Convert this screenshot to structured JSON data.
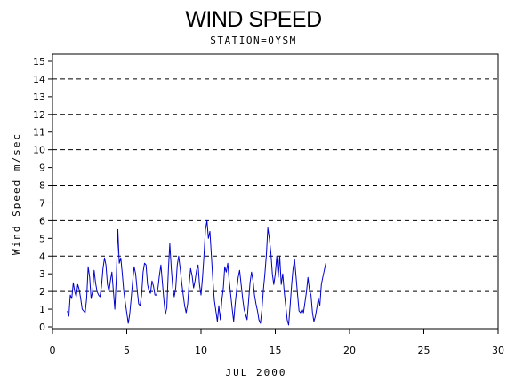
{
  "chart_data": {
    "type": "line",
    "title": "WIND SPEED",
    "subtitle": "STATION=OYSM",
    "xlabel": "JUL 2000",
    "ylabel": "Wind Speed m/sec",
    "xlim": [
      0,
      30
    ],
    "ylim": [
      0,
      15
    ],
    "x_ticks": [
      "0",
      "5",
      "10",
      "15",
      "20",
      "25",
      "30"
    ],
    "y_ticks": [
      "0",
      "1",
      "2",
      "3",
      "4",
      "5",
      "6",
      "7",
      "8",
      "9",
      "10",
      "11",
      "12",
      "13",
      "14",
      "15"
    ],
    "gridlines_y": [
      2,
      4,
      6,
      8,
      10,
      12,
      14
    ],
    "grid": "dashed horizontal",
    "line_color": "#0000cc",
    "series": [
      {
        "values": [
          [
            1.0,
            0.9
          ],
          [
            1.1,
            0.6
          ],
          [
            1.2,
            1.8
          ],
          [
            1.3,
            1.6
          ],
          [
            1.4,
            2.5
          ],
          [
            1.5,
            2.0
          ],
          [
            1.6,
            1.7
          ],
          [
            1.7,
            2.4
          ],
          [
            1.8,
            2.1
          ],
          [
            1.9,
            1.6
          ],
          [
            2.0,
            1.0
          ],
          [
            2.1,
            0.9
          ],
          [
            2.2,
            0.8
          ],
          [
            2.3,
            1.6
          ],
          [
            2.4,
            3.4
          ],
          [
            2.5,
            2.8
          ],
          [
            2.6,
            1.6
          ],
          [
            2.7,
            2.0
          ],
          [
            2.8,
            3.2
          ],
          [
            2.9,
            2.5
          ],
          [
            3.0,
            2.0
          ],
          [
            3.1,
            1.8
          ],
          [
            3.2,
            1.7
          ],
          [
            3.3,
            2.3
          ],
          [
            3.4,
            3.3
          ],
          [
            3.5,
            3.9
          ],
          [
            3.6,
            3.5
          ],
          [
            3.7,
            2.4
          ],
          [
            3.8,
            2.0
          ],
          [
            3.9,
            2.6
          ],
          [
            4.0,
            3.1
          ],
          [
            4.1,
            2.0
          ],
          [
            4.2,
            1.0
          ],
          [
            4.3,
            2.8
          ],
          [
            4.4,
            5.5
          ],
          [
            4.5,
            3.6
          ],
          [
            4.6,
            3.9
          ],
          [
            4.7,
            3.0
          ],
          [
            4.8,
            2.0
          ],
          [
            4.9,
            1.4
          ],
          [
            5.0,
            0.8
          ],
          [
            5.1,
            0.2
          ],
          [
            5.2,
            0.7
          ],
          [
            5.3,
            1.6
          ],
          [
            5.4,
            2.6
          ],
          [
            5.5,
            3.4
          ],
          [
            5.6,
            3.0
          ],
          [
            5.7,
            2.1
          ],
          [
            5.8,
            1.3
          ],
          [
            5.9,
            1.2
          ],
          [
            6.0,
            1.8
          ],
          [
            6.1,
            3.1
          ],
          [
            6.2,
            3.6
          ],
          [
            6.3,
            3.5
          ],
          [
            6.4,
            2.4
          ],
          [
            6.5,
            2.0
          ],
          [
            6.6,
            1.9
          ],
          [
            6.7,
            2.6
          ],
          [
            6.8,
            2.3
          ],
          [
            6.9,
            1.8
          ],
          [
            7.0,
            1.8
          ],
          [
            7.1,
            2.2
          ],
          [
            7.2,
            2.9
          ],
          [
            7.3,
            3.5
          ],
          [
            7.4,
            2.5
          ],
          [
            7.5,
            1.5
          ],
          [
            7.6,
            0.7
          ],
          [
            7.7,
            1.1
          ],
          [
            7.8,
            3.2
          ],
          [
            7.9,
            4.7
          ],
          [
            8.0,
            3.3
          ],
          [
            8.1,
            2.2
          ],
          [
            8.2,
            1.7
          ],
          [
            8.3,
            2.2
          ],
          [
            8.4,
            3.5
          ],
          [
            8.5,
            4.0
          ],
          [
            8.6,
            3.3
          ],
          [
            8.7,
            2.5
          ],
          [
            8.8,
            1.8
          ],
          [
            8.9,
            1.2
          ],
          [
            9.0,
            0.8
          ],
          [
            9.1,
            1.3
          ],
          [
            9.2,
            2.4
          ],
          [
            9.3,
            3.3
          ],
          [
            9.4,
            2.9
          ],
          [
            9.5,
            2.2
          ],
          [
            9.6,
            2.6
          ],
          [
            9.7,
            3.2
          ],
          [
            9.8,
            3.5
          ],
          [
            9.9,
            2.4
          ],
          [
            10.0,
            1.8
          ],
          [
            10.1,
            2.8
          ],
          [
            10.2,
            4.0
          ],
          [
            10.3,
            5.5
          ],
          [
            10.4,
            6.0
          ],
          [
            10.5,
            5.0
          ],
          [
            10.6,
            5.4
          ],
          [
            10.7,
            4.0
          ],
          [
            10.8,
            2.6
          ],
          [
            10.9,
            1.5
          ],
          [
            11.0,
            0.9
          ],
          [
            11.1,
            0.3
          ],
          [
            11.2,
            1.2
          ],
          [
            11.3,
            0.4
          ],
          [
            11.4,
            1.5
          ],
          [
            11.5,
            2.2
          ],
          [
            11.6,
            3.4
          ],
          [
            11.7,
            3.1
          ],
          [
            11.8,
            3.6
          ],
          [
            11.9,
            2.6
          ],
          [
            12.0,
            1.8
          ],
          [
            12.1,
            1.0
          ],
          [
            12.2,
            0.3
          ],
          [
            12.3,
            1.3
          ],
          [
            12.4,
            2.1
          ],
          [
            12.5,
            2.8
          ],
          [
            12.6,
            3.2
          ],
          [
            12.7,
            2.4
          ],
          [
            12.8,
            1.6
          ],
          [
            12.9,
            1.0
          ],
          [
            13.0,
            0.7
          ],
          [
            13.1,
            0.4
          ],
          [
            13.2,
            1.4
          ],
          [
            13.3,
            2.5
          ],
          [
            13.4,
            3.1
          ],
          [
            13.5,
            2.6
          ],
          [
            13.6,
            1.8
          ],
          [
            13.7,
            1.3
          ],
          [
            13.8,
            0.9
          ],
          [
            13.9,
            0.4
          ],
          [
            14.0,
            0.2
          ],
          [
            14.1,
            1.0
          ],
          [
            14.2,
            2.1
          ],
          [
            14.3,
            3.0
          ],
          [
            14.4,
            4.1
          ],
          [
            14.5,
            5.6
          ],
          [
            14.6,
            5.0
          ],
          [
            14.7,
            4.2
          ],
          [
            14.8,
            3.0
          ],
          [
            14.9,
            2.4
          ],
          [
            15.0,
            3.0
          ],
          [
            15.1,
            4.0
          ],
          [
            15.2,
            2.8
          ],
          [
            15.3,
            4.0
          ],
          [
            15.4,
            2.4
          ],
          [
            15.5,
            3.0
          ],
          [
            15.6,
            2.0
          ],
          [
            15.7,
            1.2
          ],
          [
            15.8,
            0.4
          ],
          [
            15.9,
            0.1
          ],
          [
            16.0,
            1.2
          ],
          [
            16.1,
            2.4
          ],
          [
            16.2,
            3.3
          ],
          [
            16.3,
            3.8
          ],
          [
            16.4,
            2.8
          ],
          [
            16.5,
            1.8
          ],
          [
            16.6,
            0.9
          ],
          [
            16.7,
            0.8
          ],
          [
            16.8,
            1.0
          ],
          [
            16.9,
            0.8
          ],
          [
            17.0,
            1.4
          ],
          [
            17.1,
            2.0
          ],
          [
            17.2,
            2.8
          ],
          [
            17.3,
            2.1
          ],
          [
            17.4,
            1.8
          ],
          [
            17.5,
            0.8
          ],
          [
            17.6,
            0.3
          ],
          [
            17.7,
            0.6
          ],
          [
            17.8,
            1.1
          ],
          [
            17.9,
            1.6
          ],
          [
            18.0,
            1.2
          ],
          [
            18.1,
            2.4
          ],
          [
            18.2,
            2.8
          ],
          [
            18.3,
            3.2
          ],
          [
            18.4,
            3.6
          ]
        ]
      }
    ]
  }
}
